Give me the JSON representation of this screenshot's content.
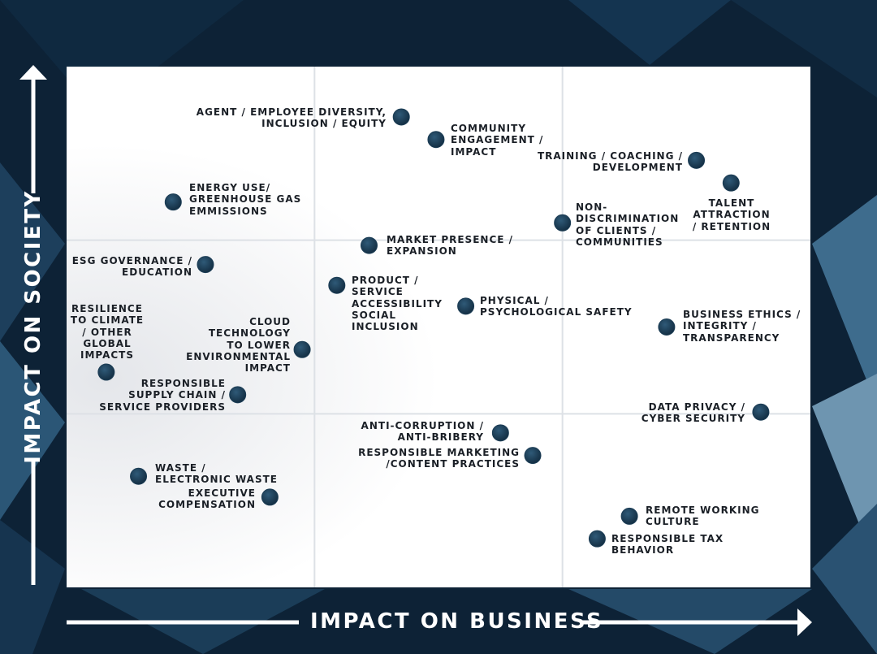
{
  "chart_data": {
    "type": "scatter",
    "xlabel": "IMPACT ON BUSINESS",
    "ylabel": "IMPACT ON SOCIETY",
    "xlim": [
      0,
      3
    ],
    "ylim": [
      0,
      3
    ],
    "grid": true,
    "color": "#1c3d55",
    "labels": [
      "AGENT / EMPLOYEE DIVERSITY,\nINCLUSION / EQUITY",
      "COMMUNITY\nENGAGEMENT /\nIMPACT",
      "TRAINING / COACHING /\nDEVELOPMENT",
      "TALENT\nATTRACTION\n/ RETENTION",
      "ENERGY USE/\nGREENHOUSE GAS\nEMMISSIONS",
      "NON-\nDISCRIMINATION\nOF CLIENTS /\nCOMMUNITIES",
      "MARKET PRESENCE /\nEXPANSION",
      "ESG GOVERNANCE /\nEDUCATION",
      "PRODUCT /\nSERVICE\nACCESSIBILITY\nSOCIAL\nINCLUSION",
      "PHYSICAL /\nPSYCHOLOGICAL SAFETY",
      "BUSINESS ETHICS /\nINTEGRITY /\nTRANSPARENCY",
      "RESILIENCE\nTO CLIMATE\n/ OTHER\nGLOBAL\nIMPACTS",
      "CLOUD\nTECHNOLOGY\nTO LOWER\nENVIRONMENTAL\nIMPACT",
      "RESPONSIBLE\nSUPPLY CHAIN /\nSERVICE PROVIDERS",
      "DATA PRIVACY /\nCYBER SECURITY",
      "ANTI-CORRUPTION /\nANTI-BRIBERY",
      "RESPONSIBLE MARKETING\n/CONTENT PRACTICES",
      "WASTE /\nELECTRONIC WASTE",
      "EXECUTIVE\nCOMPENSATION",
      "REMOTE WORKING\nCULTURE",
      "RESPONSIBLE TAX\nBEHAVIOR"
    ],
    "x": [
      1.35,
      1.49,
      2.54,
      2.68,
      0.43,
      2.0,
      1.22,
      0.56,
      1.09,
      1.61,
      2.42,
      0.16,
      0.95,
      0.69,
      2.8,
      1.75,
      1.88,
      0.29,
      0.82,
      2.27,
      2.14
    ],
    "y": [
      2.71,
      2.58,
      2.46,
      2.33,
      2.22,
      2.1,
      1.97,
      1.86,
      1.74,
      1.62,
      1.5,
      1.24,
      1.37,
      1.11,
      1.01,
      0.89,
      0.76,
      0.64,
      0.52,
      0.41,
      0.28
    ]
  }
}
